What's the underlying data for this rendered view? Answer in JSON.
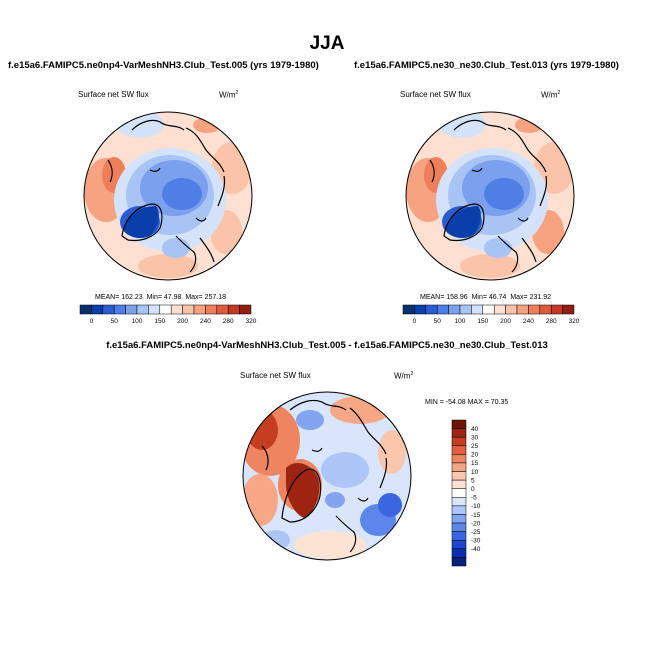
{
  "title": "JJA",
  "colors": {
    "seq": [
      "#08306b",
      "#0a3ea8",
      "#2b5bd0",
      "#4f7ee6",
      "#7aa0ee",
      "#a8c4f5",
      "#d4e3fa",
      "#ffffff",
      "#fde0d2",
      "#fbc3a7",
      "#f7a280",
      "#ef7f5a",
      "#de5a3c",
      "#c23a25",
      "#8f1f12"
    ],
    "diff": [
      "#08217a",
      "#0b2fb0",
      "#1d48cf",
      "#3a66e0",
      "#5c86ea",
      "#83a5f1",
      "#aec6f7",
      "#d8e5fb",
      "#ffffff",
      "#fde3d4",
      "#fbc7ac",
      "#f6a786",
      "#ef8560",
      "#e0613e",
      "#c53e22",
      "#9c2410",
      "#6e1408"
    ]
  },
  "panels": [
    {
      "title": "f.e15a6.FAMIPC5.ne0np4-VarMeshNH3.Club_Test.005 (yrs 1979-1980)",
      "variable": "Surface net SW flux",
      "units": "W/m",
      "units_sup": "2",
      "stats": {
        "mean_label": "MEAN=",
        "mean": "162.23",
        "min_label": "Min=",
        "min": "47.98",
        "max_label": "Max=",
        "max": "257.18"
      },
      "colorbar_ticks": [
        "0",
        "50",
        "100",
        "150",
        "200",
        "240",
        "280",
        "320"
      ]
    },
    {
      "title": "f.e15a6.FAMIPC5.ne30_ne30.Club_Test.013 (yrs 1979-1980)",
      "variable": "Surface net SW flux",
      "units": "W/m",
      "units_sup": "2",
      "stats": {
        "mean_label": "MEAN=",
        "mean": "158.96",
        "min_label": "Min=",
        "min": "46.74",
        "max_label": "Max=",
        "max": "231.92"
      },
      "colorbar_ticks": [
        "0",
        "50",
        "100",
        "150",
        "200",
        "240",
        "280",
        "320"
      ]
    }
  ],
  "difference": {
    "title": "f.e15a6.FAMIPC5.ne0np4-VarMeshNH3.Club_Test.005 - f.e15a6.FAMIPC5.ne30_ne30.Club_Test.013",
    "variable": "Surface net SW flux",
    "units": "W/m",
    "units_sup": "2",
    "minmax_text": "MIN = -54.08 MAX =  70.35",
    "colorbar_ticks": [
      "40",
      "30",
      "25",
      "20",
      "15",
      "10",
      "5",
      "0",
      "-5",
      "-10",
      "-15",
      "-20",
      "-25",
      "-30",
      "-40"
    ]
  }
}
